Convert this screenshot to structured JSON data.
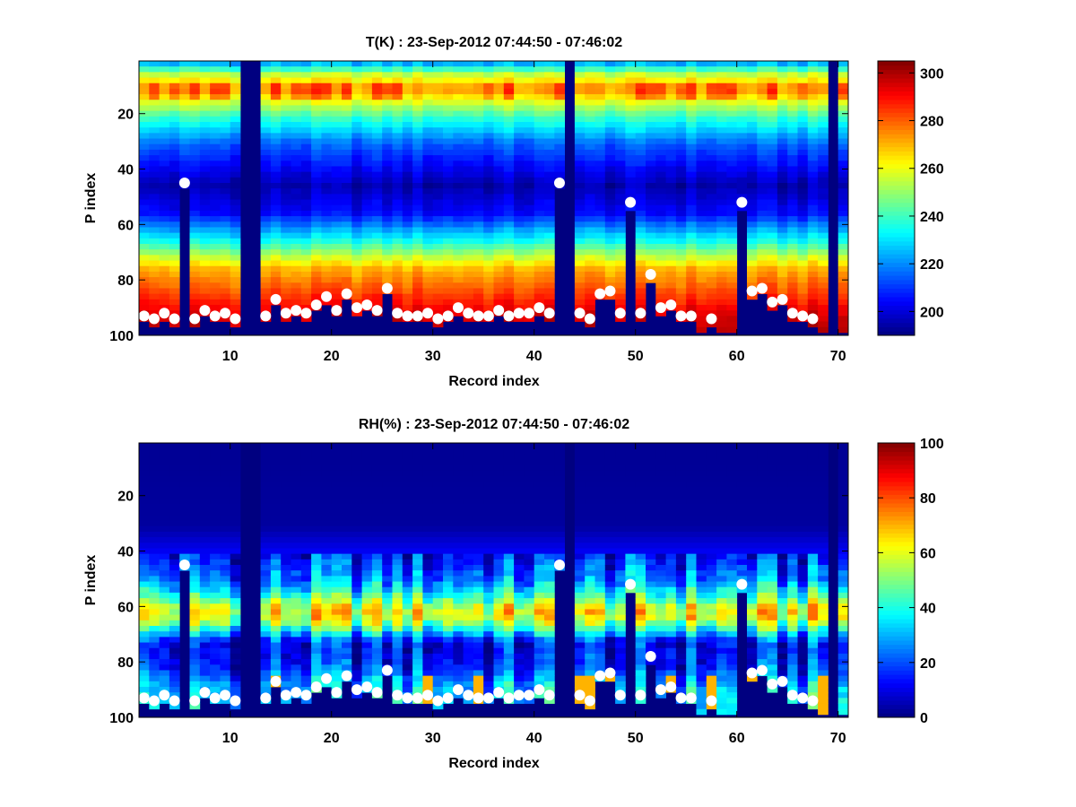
{
  "chart_data": [
    {
      "type": "heatmap",
      "title": "T(K) : 23-Sep-2012 07:44:50 - 07:46:02",
      "xlabel": "Record index",
      "ylabel": "P index",
      "xlim": [
        1,
        71
      ],
      "ylim": [
        100,
        1
      ],
      "y_direction": "reversed",
      "xticks": [
        10,
        20,
        30,
        40,
        50,
        60,
        70
      ],
      "yticks": [
        20,
        40,
        60,
        80,
        100
      ],
      "colormap": "jet",
      "color_range": [
        190,
        305
      ],
      "colorbar_ticks": [
        200,
        220,
        240,
        260,
        280,
        300
      ],
      "profile": {
        "description_levels": [
          1,
          5,
          10,
          20,
          30,
          45,
          55,
          65,
          75,
          85,
          92,
          100
        ],
        "values": [
          225,
          255,
          275,
          240,
          215,
          195,
          205,
          235,
          270,
          285,
          295,
          300
        ]
      },
      "missing_records": [
        11,
        12,
        43,
        69
      ],
      "record_end_level": [
        93,
        94,
        92,
        94,
        45,
        94,
        91,
        93,
        92,
        94,
        100,
        100,
        93,
        87,
        92,
        91,
        92,
        89,
        86,
        91,
        85,
        90,
        89,
        91,
        83,
        92,
        93,
        93,
        92,
        94,
        93,
        90,
        92,
        93,
        93,
        91,
        93,
        92,
        92,
        90,
        92,
        45,
        100,
        92,
        94,
        85,
        84,
        92,
        52,
        92,
        78,
        90,
        89,
        93,
        93,
        97,
        94,
        97,
        97,
        52,
        84,
        83,
        88,
        87,
        92,
        93,
        94,
        97,
        100,
        97
      ],
      "marker_records": [
        1,
        2,
        3,
        4,
        5,
        6,
        7,
        8,
        9,
        10,
        13,
        14,
        15,
        16,
        17,
        18,
        19,
        20,
        21,
        22,
        23,
        24,
        25,
        26,
        27,
        28,
        29,
        30,
        31,
        32,
        33,
        34,
        35,
        36,
        37,
        38,
        39,
        40,
        41,
        42,
        44,
        45,
        46,
        47,
        48,
        49,
        50,
        51,
        52,
        53,
        54,
        55,
        57,
        60,
        61,
        62,
        63,
        64,
        65,
        66,
        67
      ],
      "marker_levels": [
        93,
        94,
        92,
        94,
        45,
        94,
        91,
        93,
        92,
        94,
        93,
        87,
        92,
        91,
        92,
        89,
        86,
        91,
        85,
        90,
        89,
        91,
        83,
        92,
        93,
        93,
        92,
        94,
        93,
        90,
        92,
        93,
        93,
        91,
        93,
        92,
        92,
        90,
        92,
        45,
        92,
        94,
        85,
        84,
        92,
        52,
        92,
        78,
        90,
        89,
        93,
        93,
        94,
        52,
        84,
        83,
        88,
        87,
        92,
        93,
        94
      ]
    },
    {
      "type": "heatmap",
      "title": "RH(%) : 23-Sep-2012 07:44:50 - 07:46:02",
      "xlabel": "Record index",
      "ylabel": "P index",
      "xlim": [
        1,
        71
      ],
      "ylim": [
        100,
        1
      ],
      "y_direction": "reversed",
      "xticks": [
        10,
        20,
        30,
        40,
        50,
        60,
        70
      ],
      "yticks": [
        20,
        40,
        60,
        80,
        100
      ],
      "colormap": "jet",
      "color_range": [
        0,
        100
      ],
      "colorbar_ticks": [
        0,
        20,
        40,
        60,
        80,
        100
      ],
      "profile": {
        "description_levels": [
          1,
          30,
          40,
          50,
          56,
          60,
          64,
          68,
          72,
          80,
          88,
          100
        ],
        "values": [
          2,
          3,
          12,
          25,
          45,
          62,
          58,
          35,
          12,
          15,
          30,
          40
        ]
      },
      "missing_records": [
        11,
        12,
        43,
        69
      ],
      "marker_records": [
        1,
        2,
        3,
        4,
        5,
        6,
        7,
        8,
        9,
        10,
        13,
        14,
        15,
        16,
        17,
        18,
        19,
        20,
        21,
        22,
        23,
        24,
        25,
        26,
        27,
        28,
        29,
        30,
        31,
        32,
        33,
        34,
        35,
        36,
        37,
        38,
        39,
        40,
        41,
        42,
        44,
        45,
        46,
        47,
        48,
        49,
        50,
        51,
        52,
        53,
        54,
        55,
        57,
        60,
        61,
        62,
        63,
        64,
        65,
        66,
        67
      ],
      "marker_levels": [
        93,
        94,
        92,
        94,
        45,
        94,
        91,
        93,
        92,
        94,
        93,
        87,
        92,
        91,
        92,
        89,
        86,
        91,
        85,
        90,
        89,
        91,
        83,
        92,
        93,
        93,
        92,
        94,
        93,
        90,
        92,
        93,
        93,
        91,
        93,
        92,
        92,
        90,
        92,
        45,
        92,
        94,
        85,
        84,
        92,
        52,
        92,
        78,
        90,
        89,
        93,
        93,
        94,
        52,
        84,
        83,
        88,
        87,
        92,
        93,
        94
      ]
    }
  ]
}
